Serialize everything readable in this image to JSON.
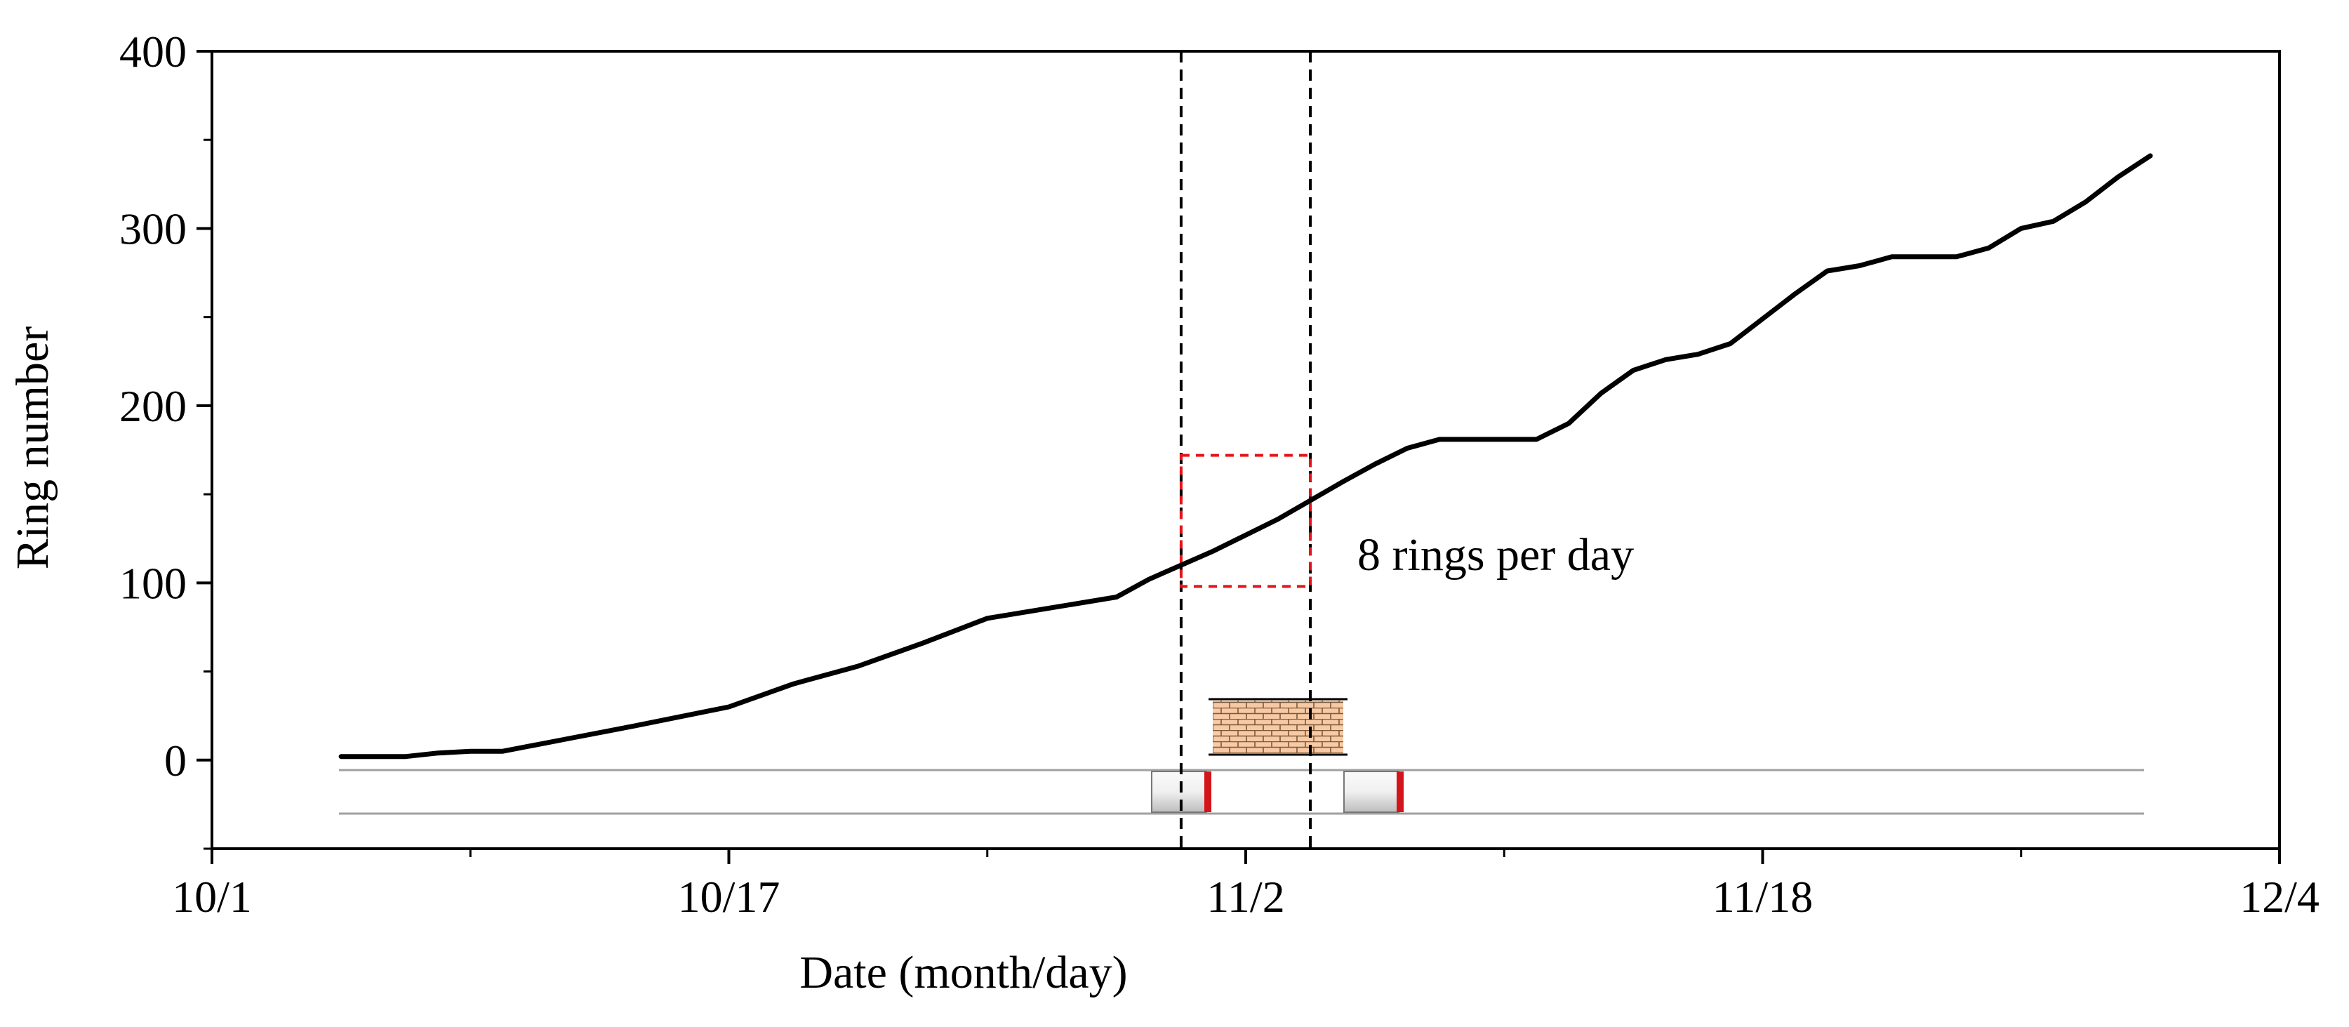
{
  "chart_data": {
    "type": "line",
    "title": "",
    "xlabel": "Date (month/day)",
    "ylabel": "Ring number",
    "xlim": [
      "10/1",
      "12/4"
    ],
    "ylim": [
      -50,
      400
    ],
    "x_ticks": [
      "10/1",
      "10/17",
      "11/2",
      "11/18",
      "12/4"
    ],
    "y_ticks": [
      0,
      100,
      200,
      300,
      400
    ],
    "grid": false,
    "legend": "none",
    "line_color": "#000000",
    "series": [
      {
        "x": [
          "10/5",
          "10/7",
          "10/8",
          "10/9",
          "10/10",
          "10/12",
          "10/14",
          "10/17",
          "10/19",
          "10/21",
          "10/23",
          "10/25",
          "10/27",
          "10/29",
          "10/30",
          "11/1",
          "11/3",
          "11/5",
          "11/6",
          "11/7",
          "11/8",
          "11/10",
          "11/11",
          "11/12",
          "11/13",
          "11/14",
          "11/15",
          "11/16",
          "11/17",
          "11/19",
          "11/20",
          "11/21",
          "11/22",
          "11/24",
          "11/25",
          "11/26",
          "11/27",
          "11/28",
          "11/29",
          "11/30"
        ],
        "y": [
          2,
          2,
          4,
          5,
          5,
          12,
          19,
          30,
          43,
          53,
          66,
          80,
          86,
          92,
          102,
          118,
          136,
          157,
          167,
          176,
          181,
          181,
          181,
          190,
          207,
          220,
          226,
          229,
          235,
          263,
          276,
          279,
          284,
          284,
          289,
          300,
          304,
          315,
          329,
          341
        ]
      }
    ],
    "vertical_lines": [
      "10/31",
      "11/4"
    ],
    "annotations": [
      {
        "text": "8 rings per day"
      }
    ],
    "colors": {
      "highlight_box": "#e5141b",
      "brick_fill": "#f7c9a4",
      "tunnel_marker": "#d4141b",
      "tunnel_line": "#a0a0a0"
    }
  }
}
